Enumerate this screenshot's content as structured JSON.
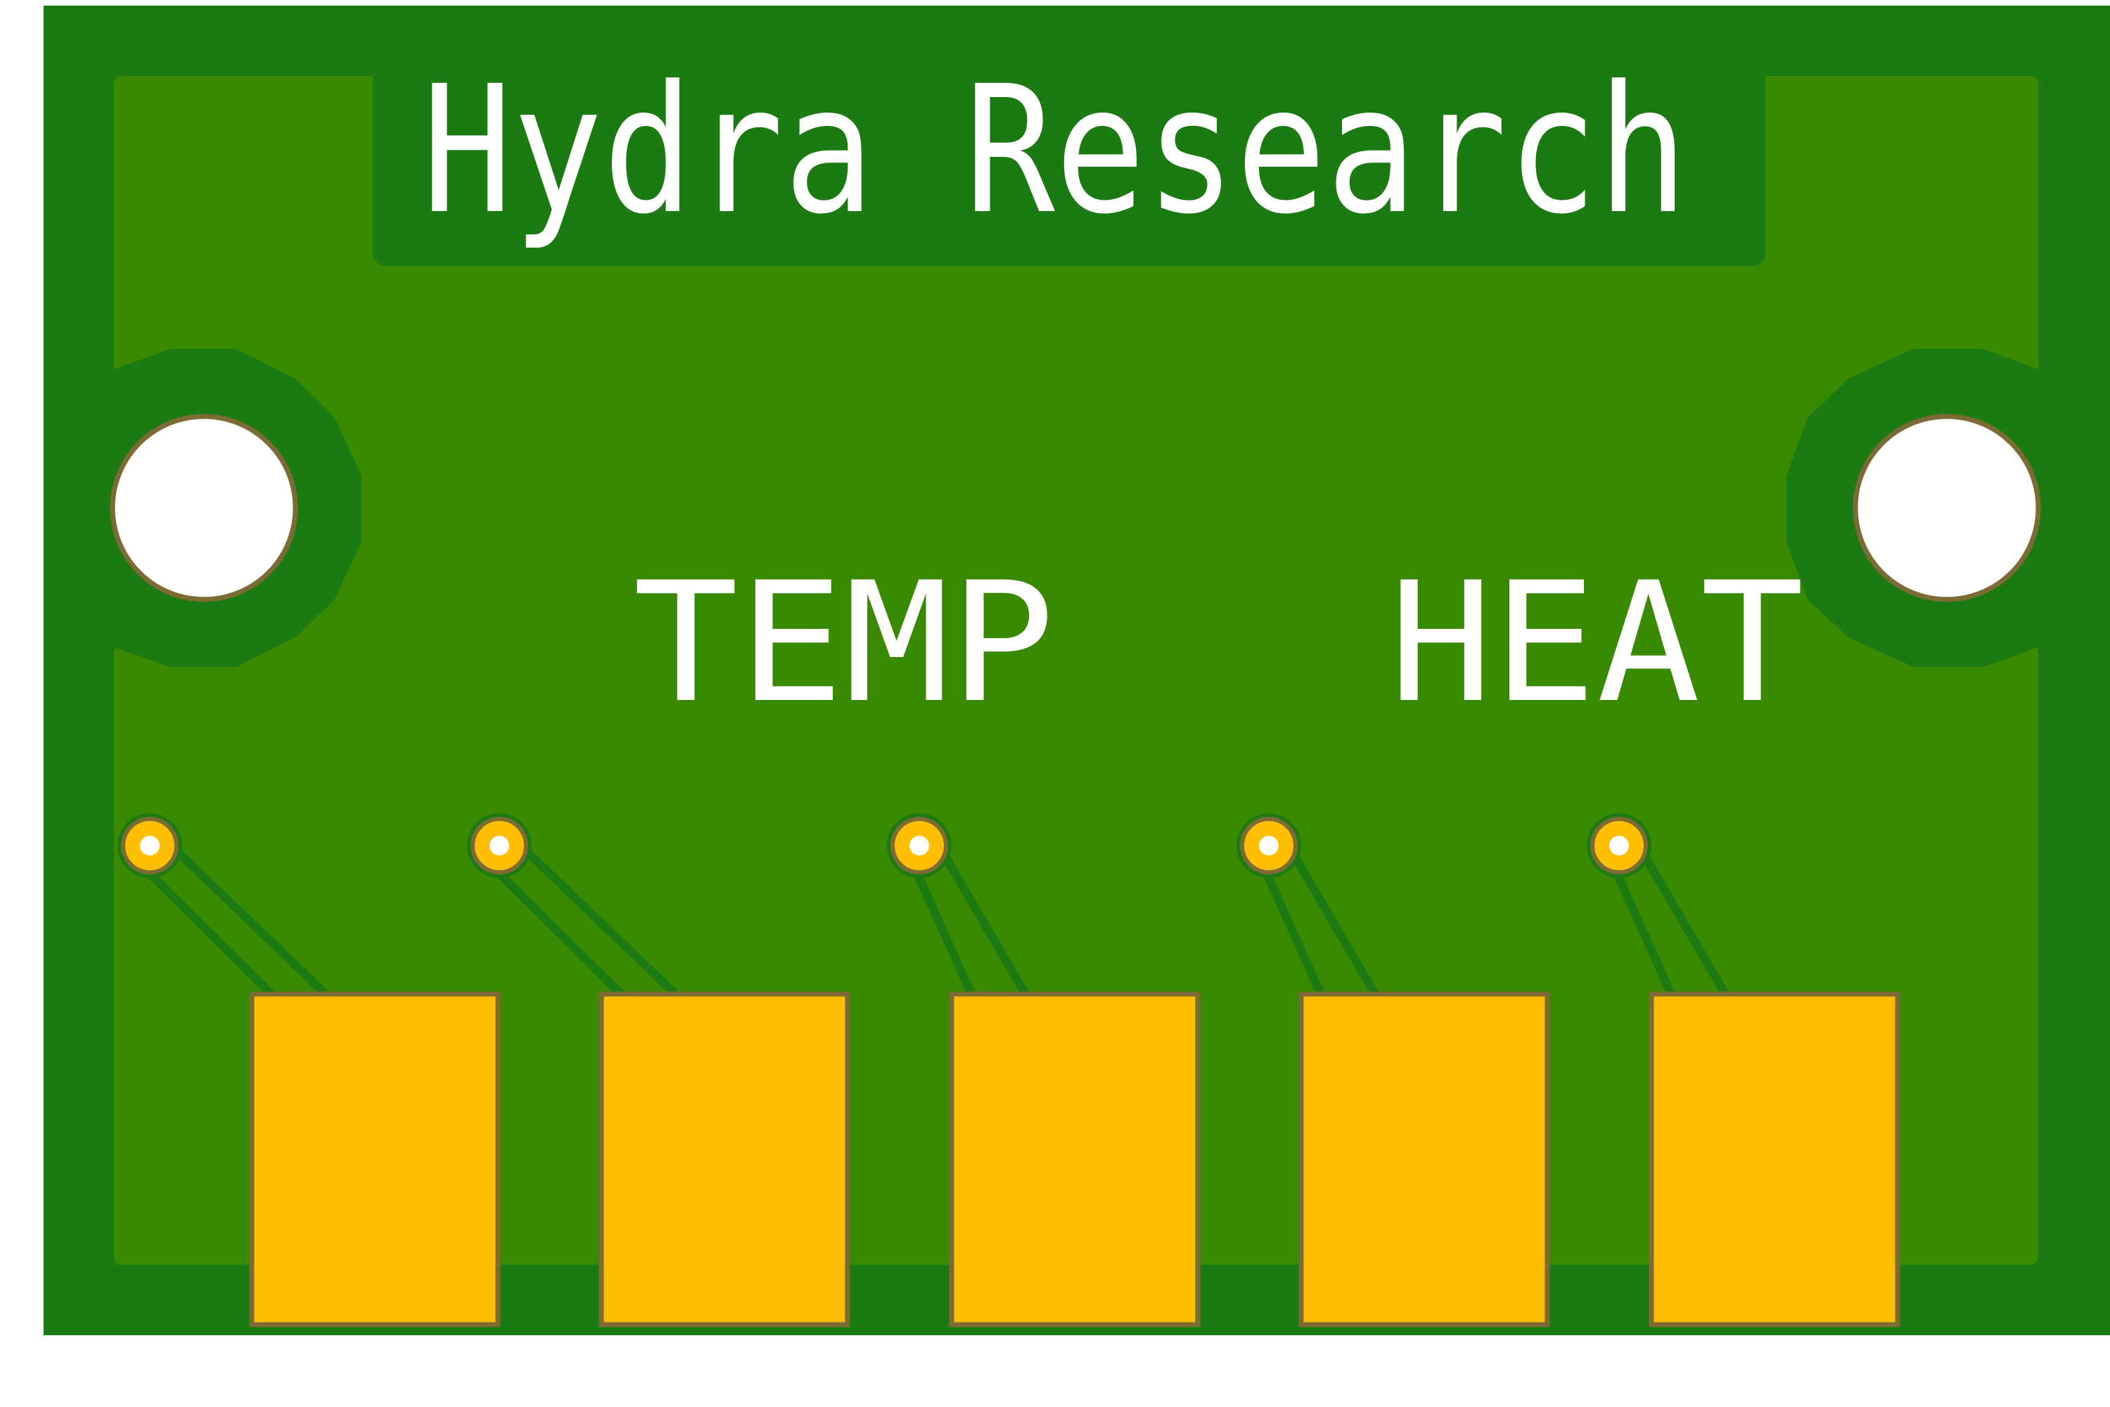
{
  "board": {
    "brand_text": "Hydra Research",
    "labels": [
      "TEMP",
      "HEAT"
    ],
    "pad_count": 5,
    "via_count": 5,
    "mounting_hole_count": 2,
    "colors": {
      "background": "#ffffff",
      "board_edge": "#1c7a12",
      "copper_pour": "#398a00",
      "silkscreen": "#ffffff",
      "gold_pad": "#ffbf00",
      "pad_outline": "#7c6b35",
      "trace": "#1c7a12"
    }
  }
}
